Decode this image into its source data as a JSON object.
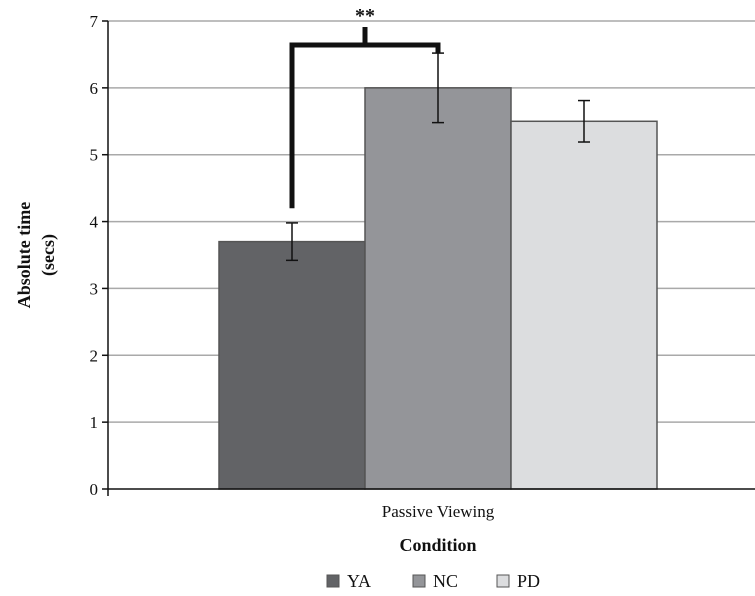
{
  "chart_data": {
    "type": "bar",
    "xlabel": "Condition",
    "ylabel_lines": [
      "Absolute time",
      "(secs)"
    ],
    "categories": [
      "Passive Viewing"
    ],
    "series": [
      {
        "name": "YA",
        "values": [
          3.7
        ],
        "error": [
          0.28
        ],
        "color": "#626366"
      },
      {
        "name": "NC",
        "values": [
          6.0
        ],
        "error": [
          0.52
        ],
        "color": "#949599"
      },
      {
        "name": "PD",
        "values": [
          5.5
        ],
        "error": [
          0.31
        ],
        "color": "#dcdddf"
      }
    ],
    "ylim": [
      0,
      7
    ],
    "yticks": [
      0,
      1,
      2,
      3,
      4,
      5,
      6,
      7
    ],
    "grid": true,
    "legend_position": "bottom",
    "significance": {
      "label": "**",
      "between": [
        "YA",
        "NC"
      ]
    }
  }
}
